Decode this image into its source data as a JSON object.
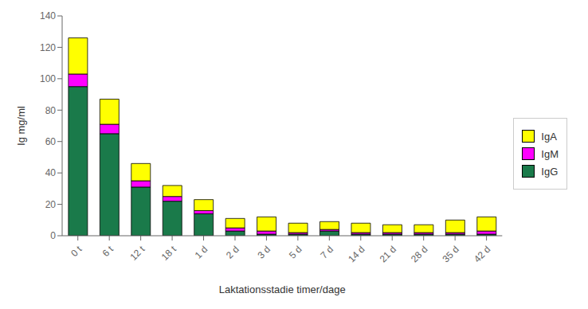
{
  "chart_data": {
    "type": "bar",
    "stacked": true,
    "categories": [
      "0 t",
      "6 t",
      "12 t",
      "18 t",
      "1 d",
      "2 d",
      "3 d",
      "5 d",
      "7 d",
      "14 d",
      "21 d",
      "28 d",
      "35 d",
      "42 d"
    ],
    "series": [
      {
        "name": "IgG",
        "color": "#1a7a4a",
        "values": [
          95,
          65,
          31,
          22,
          14,
          3,
          1,
          1,
          3,
          1,
          1,
          1,
          1,
          1
        ]
      },
      {
        "name": "IgM",
        "color": "#ff00ff",
        "values": [
          8,
          6,
          4,
          3,
          2,
          2,
          2,
          1,
          1,
          1,
          1,
          1,
          1,
          2
        ]
      },
      {
        "name": "IgA",
        "color": "#ffff00",
        "values": [
          23,
          16,
          11,
          7,
          7,
          6,
          9,
          6,
          5,
          6,
          5,
          5,
          8,
          9
        ]
      }
    ],
    "xlabel": "Laktationsstadie timer/dage",
    "ylabel": "Ig mg/ml",
    "ylim": [
      0,
      140
    ],
    "yticks": [
      0,
      20,
      40,
      60,
      80,
      100,
      120,
      140
    ],
    "grid": false,
    "legend": "right"
  }
}
